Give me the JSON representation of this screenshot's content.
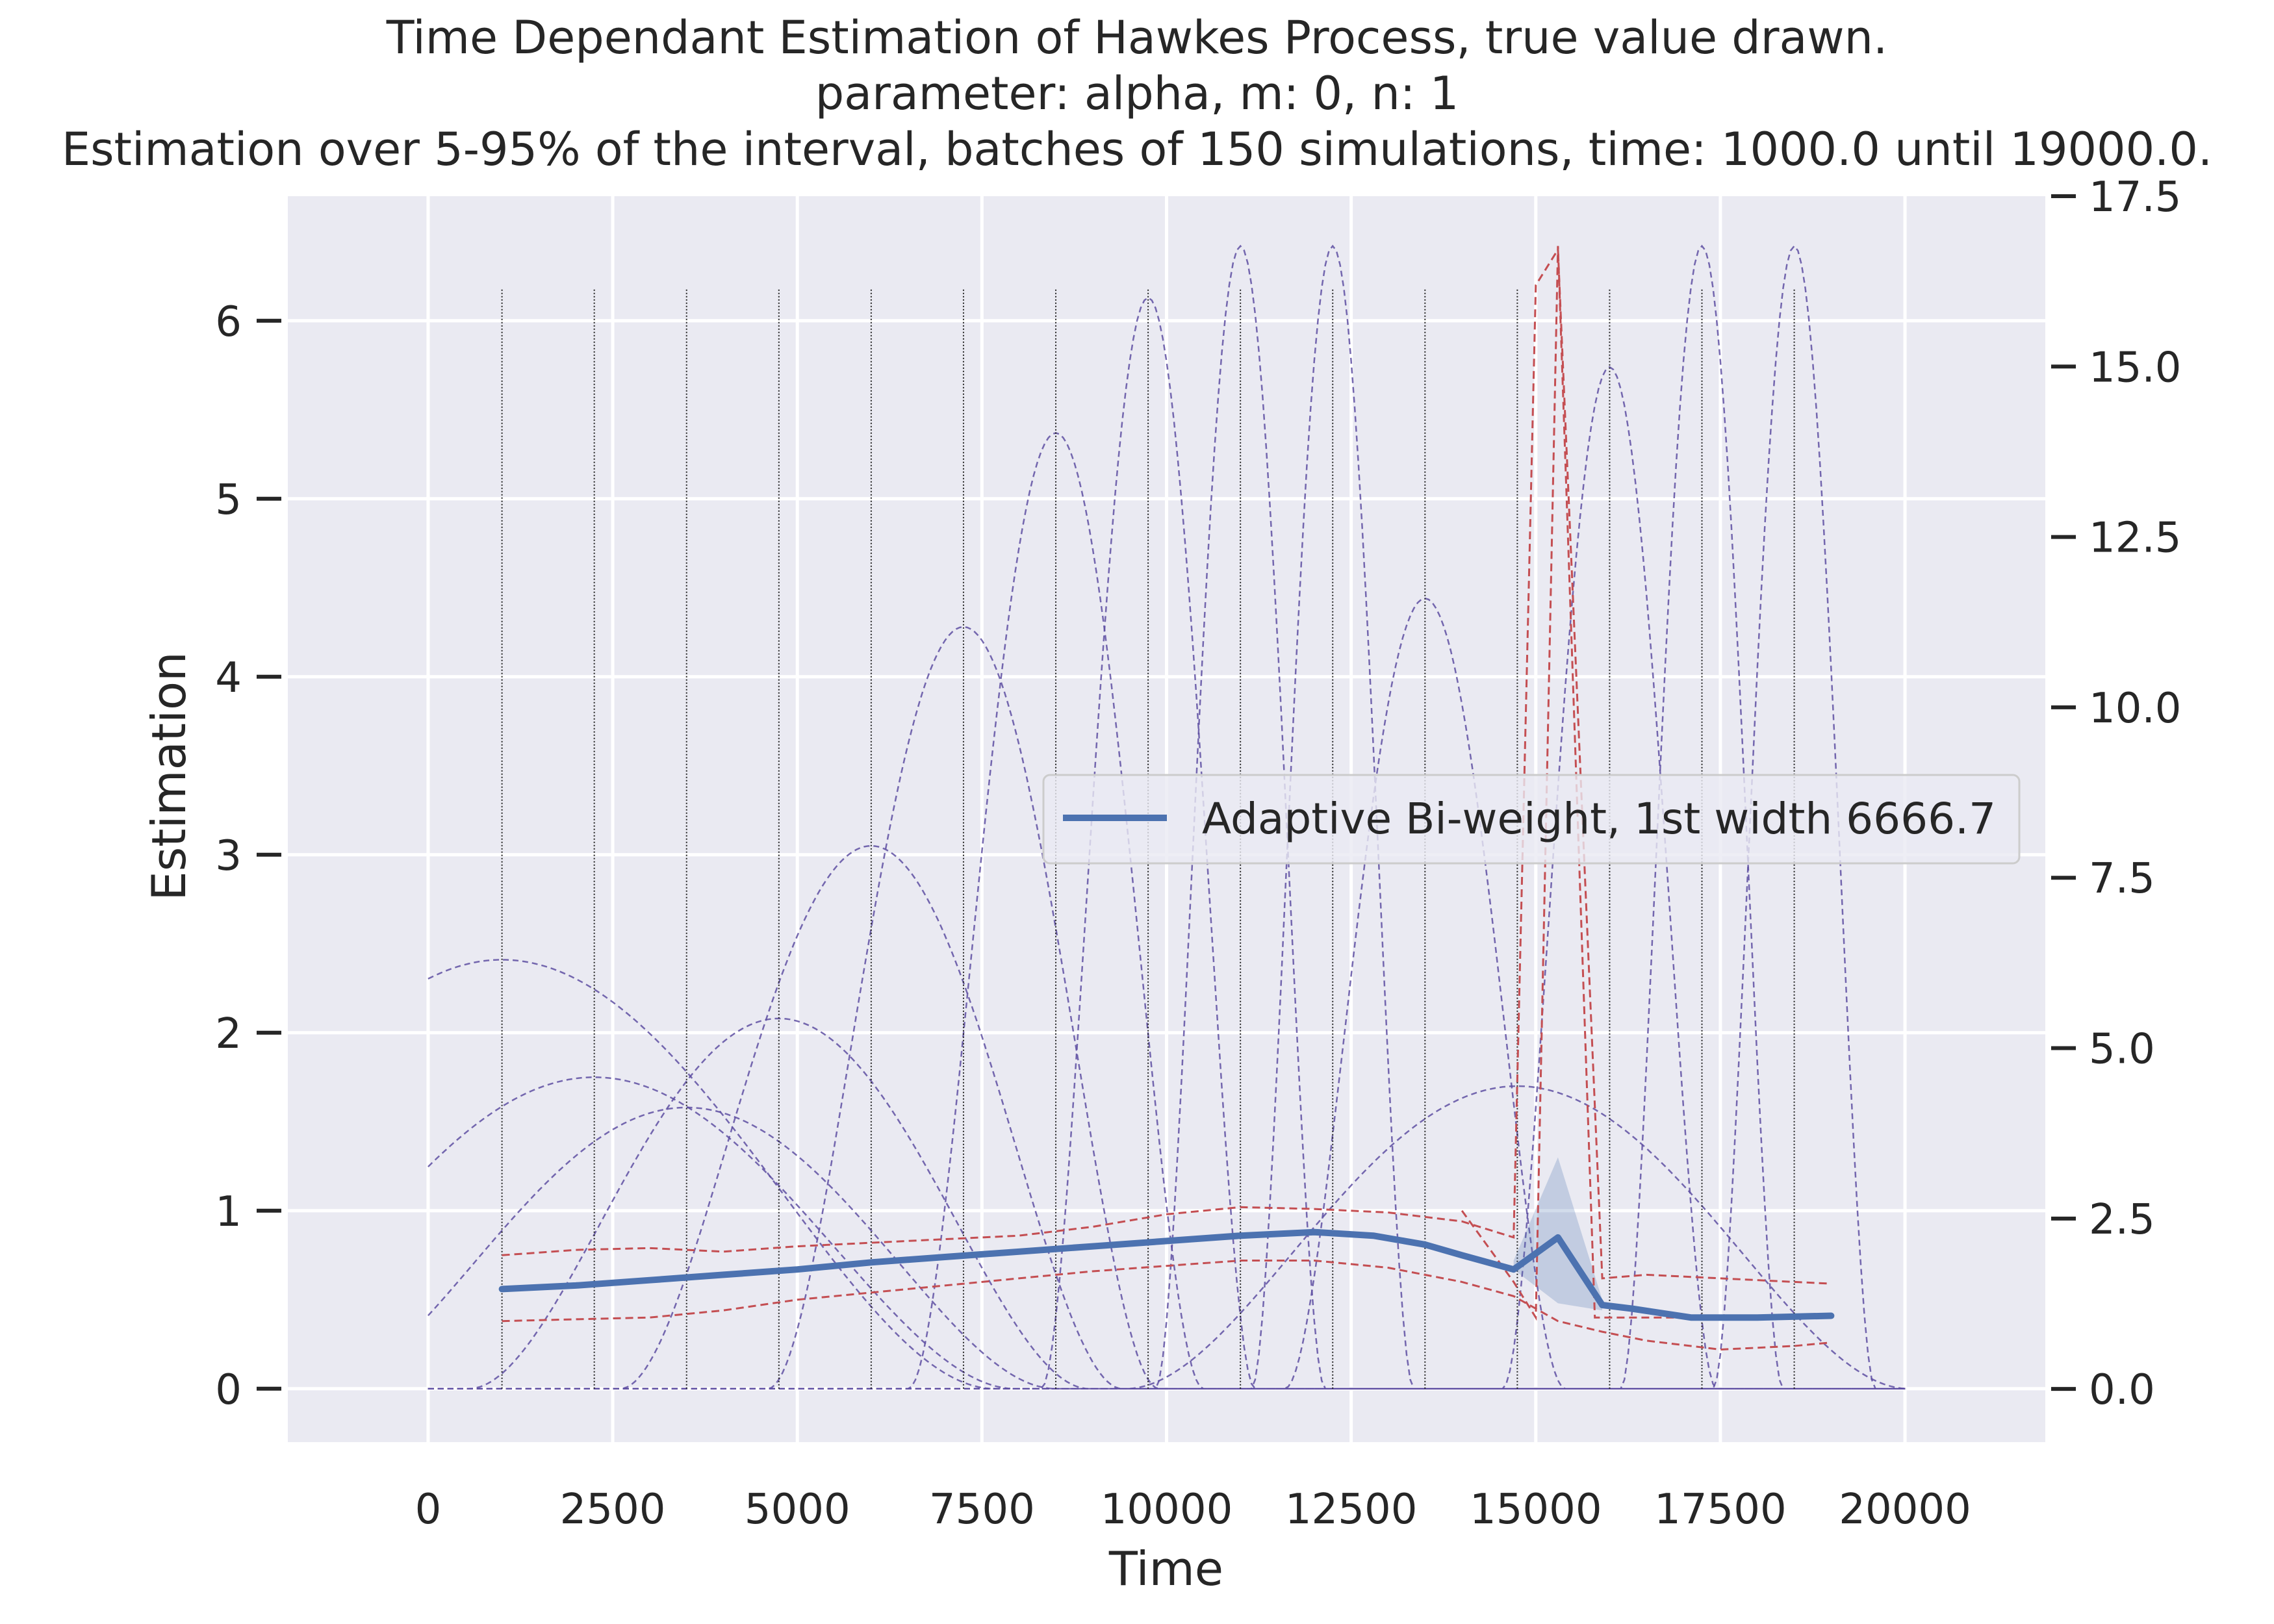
{
  "chart_data": {
    "type": "line",
    "title": [
      "Time Dependant Estimation of Hawkes Process, true value drawn.",
      "parameter: alpha, m: 0, n: 1",
      "Estimation over 5-95% of the interval, batches of 150 simulations, time: 1000.0 until 19000.0."
    ],
    "xlabel": "Time",
    "ylabel": "Estimation",
    "xlim": [
      -1900,
      21900
    ],
    "ylim": [
      -0.3,
      6.7
    ],
    "y2lim": [
      -0.78,
      17.5
    ],
    "grid": true,
    "xticks": [
      0,
      2500,
      5000,
      7500,
      10000,
      12500,
      15000,
      17500,
      20000
    ],
    "xtick_labels": [
      "0",
      "2500",
      "5000",
      "7500",
      "10000",
      "12500",
      "15000",
      "17500",
      "20000"
    ],
    "yticks": [
      0,
      1,
      2,
      3,
      4,
      5,
      6
    ],
    "ytick_labels": [
      "0",
      "1",
      "2",
      "3",
      "4",
      "5",
      "6"
    ],
    "y2ticks": [
      0,
      2.5,
      5,
      7.5,
      10,
      12.5,
      15,
      17.5
    ],
    "y2tick_labels": [
      "0.0",
      "2.5",
      "5.0",
      "7.5",
      "10.0",
      "12.5",
      "15.0",
      "17.5"
    ],
    "legend": {
      "location": "center-right",
      "entries": [
        "Adaptive Bi-weight, 1st width 6666.7"
      ]
    },
    "colors": {
      "background": "#eaeaf2",
      "grid": "#ffffff",
      "estimate": "#4c72b0",
      "band": "#4c72b0",
      "true_value": "#c44e52",
      "kernels": "#5e4fa2",
      "vlines": "#222222"
    },
    "series": [
      {
        "name": "Adaptive Bi-weight, 1st width 6666.7",
        "x": [
          1000,
          2000,
          3000,
          4000,
          5000,
          6000,
          7000,
          8000,
          9000,
          10000,
          11000,
          12000,
          12800,
          13500,
          14000,
          14700,
          15300,
          15900,
          16300,
          17100,
          18000,
          19000
        ],
        "values": [
          0.56,
          0.58,
          0.61,
          0.64,
          0.67,
          0.71,
          0.74,
          0.77,
          0.8,
          0.83,
          0.86,
          0.88,
          0.86,
          0.81,
          0.75,
          0.67,
          0.85,
          0.47,
          0.45,
          0.4,
          0.4,
          0.41
        ]
      },
      {
        "name": "confidence band",
        "x": [
          14700,
          15300,
          15900
        ],
        "lower": [
          0.67,
          0.48,
          0.44
        ],
        "upper": [
          0.72,
          1.3,
          0.5
        ]
      },
      {
        "name": "upper true bound",
        "x": [
          1000,
          2000,
          3000,
          4000,
          5000,
          6000,
          7000,
          8000,
          9000,
          10000,
          11000,
          12000,
          13000,
          14000,
          14700,
          15000,
          15300,
          15900,
          16500,
          17500,
          18500,
          19000
        ],
        "values": [
          0.75,
          0.78,
          0.79,
          0.77,
          0.8,
          0.82,
          0.84,
          0.86,
          0.91,
          0.98,
          1.02,
          1.01,
          0.99,
          0.94,
          0.85,
          6.2,
          6.4,
          0.62,
          0.64,
          0.62,
          0.6,
          0.59
        ]
      },
      {
        "name": "lower true bound",
        "x": [
          1000,
          2000,
          3000,
          4000,
          5000,
          6000,
          7000,
          8000,
          9000,
          10000,
          11000,
          12000,
          13000,
          14000,
          14700,
          15000,
          15300,
          15900,
          16500,
          17500,
          18500,
          19000
        ],
        "values": [
          0.38,
          0.39,
          0.4,
          0.44,
          0.5,
          0.54,
          0.58,
          0.62,
          0.66,
          0.69,
          0.72,
          0.72,
          0.68,
          0.6,
          0.52,
          0.45,
          0.38,
          0.32,
          0.27,
          0.22,
          0.24,
          0.26
        ]
      },
      {
        "name": "true value",
        "x": [
          14000,
          14700,
          15000,
          15300,
          15800,
          16000,
          17000,
          18000,
          19000
        ],
        "values": [
          1.0,
          0.6,
          0.4,
          6.42,
          0.4,
          0.4,
          0.4,
          0.4,
          0.4
        ]
      }
    ],
    "kernels": [
      {
        "center": 1000,
        "half_width": 6666.7,
        "height": 2.41
      },
      {
        "center": 2250,
        "half_width": 5700,
        "height": 1.75
      },
      {
        "center": 3500,
        "half_width": 5000,
        "height": 1.58
      },
      {
        "center": 4750,
        "half_width": 4200,
        "height": 2.08
      },
      {
        "center": 6000,
        "half_width": 3400,
        "height": 3.05
      },
      {
        "center": 7250,
        "half_width": 2650,
        "height": 4.28
      },
      {
        "center": 8500,
        "half_width": 2000,
        "height": 5.37
      },
      {
        "center": 9750,
        "half_width": 1450,
        "height": 6.13
      },
      {
        "center": 11000,
        "half_width": 1150,
        "height": 6.42
      },
      {
        "center": 12250,
        "half_width": 1100,
        "height": 6.42
      },
      {
        "center": 13500,
        "half_width": 1900,
        "height": 4.44
      },
      {
        "center": 14750,
        "half_width": 5300,
        "height": 1.7
      },
      {
        "center": 16000,
        "half_width": 1450,
        "height": 5.74
      },
      {
        "center": 17250,
        "half_width": 1100,
        "height": 6.42
      },
      {
        "center": 18500,
        "half_width": 1100,
        "height": 6.42
      }
    ],
    "vlines": [
      1000,
      2250,
      3500,
      4750,
      6000,
      7250,
      8500,
      9750,
      11000,
      12250,
      13500,
      14750,
      16000,
      17250,
      18500
    ],
    "vline_top": 6.18
  }
}
